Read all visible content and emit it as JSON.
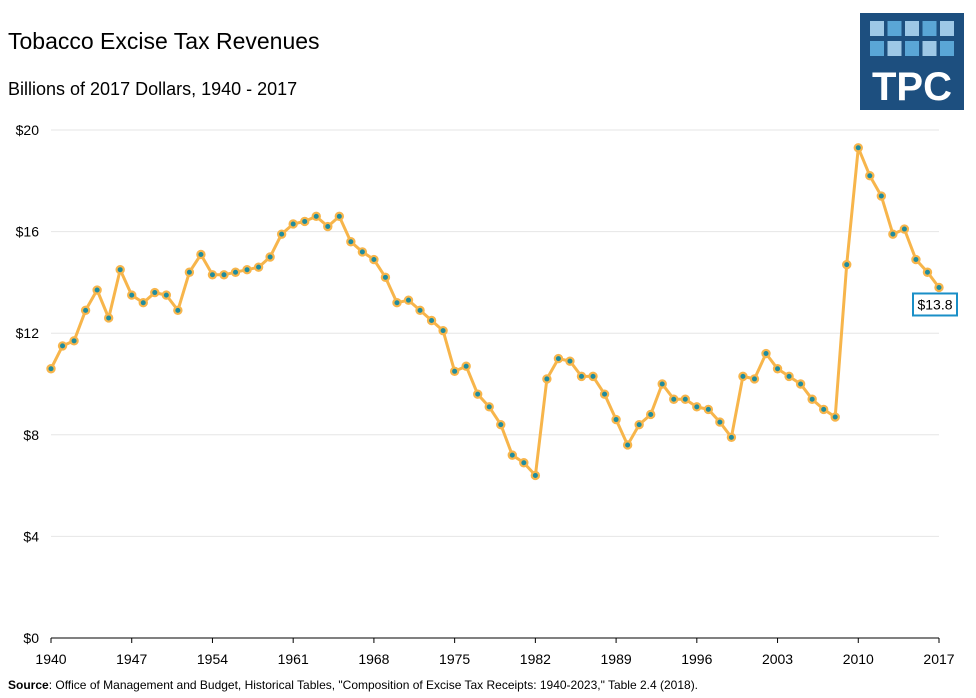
{
  "header": {
    "title": "Tobacco Excise Tax Revenues",
    "subtitle": "Billions of 2017 Dollars, 1940 - 2017"
  },
  "logo": {
    "text": "TPC",
    "color": "#1d4f7f",
    "tile_light": "#9ec8e6",
    "tile_mid": "#5aa6d6"
  },
  "footer": {
    "source_label": "Source",
    "source_text": ": Office of Management and Budget, Historical Tables, \"Composition of Excise Tax Receipts: 1940-2023,\" Table 2.4 (2018)."
  },
  "colors": {
    "line": "#f7b54b",
    "marker": "#1f8c9e",
    "grid": "#e6e6e6",
    "label_box": "#1a8fc7"
  },
  "chart_data": {
    "type": "line",
    "title": "Tobacco Excise Tax Revenues",
    "subtitle": "Billions of 2017 Dollars, 1940 - 2017",
    "xlabel": "",
    "ylabel": "",
    "xlim": [
      1940,
      2017
    ],
    "ylim": [
      0,
      20
    ],
    "x_ticks": [
      1940,
      1947,
      1954,
      1961,
      1968,
      1975,
      1982,
      1989,
      1996,
      2003,
      2010,
      2017
    ],
    "y_ticks": [
      0,
      4,
      8,
      12,
      16,
      20
    ],
    "y_tick_labels": [
      "$0",
      "$4",
      "$8",
      "$12",
      "$16",
      "$20"
    ],
    "grid": true,
    "end_label": "$13.8",
    "series": [
      {
        "name": "Tobacco excise tax revenue",
        "x": [
          1940,
          1941,
          1942,
          1943,
          1944,
          1945,
          1946,
          1947,
          1948,
          1949,
          1950,
          1951,
          1952,
          1953,
          1954,
          1955,
          1956,
          1957,
          1958,
          1959,
          1960,
          1961,
          1962,
          1963,
          1964,
          1965,
          1966,
          1967,
          1968,
          1969,
          1970,
          1971,
          1972,
          1973,
          1974,
          1975,
          1976,
          1977,
          1978,
          1979,
          1980,
          1981,
          1982,
          1983,
          1984,
          1985,
          1986,
          1987,
          1988,
          1989,
          1990,
          1991,
          1992,
          1993,
          1994,
          1995,
          1996,
          1997,
          1998,
          1999,
          2000,
          2001,
          2002,
          2003,
          2004,
          2005,
          2006,
          2007,
          2008,
          2009,
          2010,
          2011,
          2012,
          2013,
          2014,
          2015,
          2016,
          2017
        ],
        "values": [
          10.6,
          11.5,
          11.7,
          12.9,
          13.7,
          12.6,
          14.5,
          13.5,
          13.2,
          13.6,
          13.5,
          12.9,
          14.4,
          15.1,
          14.3,
          14.3,
          14.4,
          14.5,
          14.6,
          15.0,
          15.9,
          16.3,
          16.4,
          16.6,
          16.2,
          16.6,
          15.6,
          15.2,
          14.9,
          14.2,
          13.2,
          13.3,
          12.9,
          12.5,
          12.1,
          10.5,
          10.7,
          9.6,
          9.1,
          8.4,
          7.2,
          6.9,
          6.4,
          10.2,
          11.0,
          10.9,
          10.3,
          10.3,
          9.6,
          8.6,
          7.6,
          8.4,
          8.8,
          10.0,
          9.4,
          9.4,
          9.1,
          9.0,
          8.5,
          7.9,
          10.3,
          10.2,
          11.2,
          10.6,
          10.3,
          10.0,
          9.4,
          9.0,
          8.7,
          14.7,
          19.3,
          18.2,
          17.4,
          15.9,
          16.1,
          14.9,
          14.4,
          13.8
        ]
      }
    ]
  }
}
